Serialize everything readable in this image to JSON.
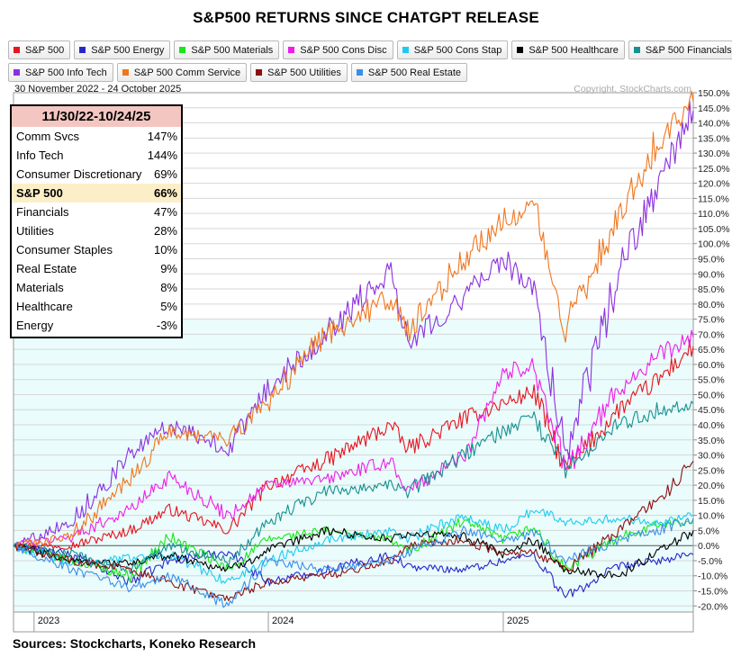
{
  "title": "S&P500 RETURNS SINCE CHATGPT RELEASE",
  "source": "Sources: Stockcharts, Koneko Research",
  "summary": {
    "header": "11/30/22-10/24/25",
    "rows": [
      {
        "label": "Comm Svcs",
        "value": "147%"
      },
      {
        "label": "Info Tech",
        "value": "144%"
      },
      {
        "label": "Consumer Discretionary",
        "value": "69%"
      },
      {
        "label": "S&P 500",
        "value": "66%"
      },
      {
        "label": "Financials",
        "value": "47%"
      },
      {
        "label": "Utilities",
        "value": "28%"
      },
      {
        "label": "Consumer Staples",
        "value": "10%"
      },
      {
        "label": "Real Estate",
        "value": "9%"
      },
      {
        "label": "Materials",
        "value": "8%"
      },
      {
        "label": "Healthcare",
        "value": "5%"
      },
      {
        "label": "Energy",
        "value": "-3%"
      }
    ]
  },
  "chart_data": {
    "type": "line",
    "title": "S&P500 RETURNS SINCE CHATGPT RELEASE",
    "date_range": "30 November 2022 - 24 October 2025",
    "copyright": "Copyright, StockCharts.com",
    "xlabel": "",
    "ylabel": "",
    "ylim": [
      -22,
      150
    ],
    "y_ticks": [
      -20,
      -15,
      -10,
      -5,
      0,
      5,
      10,
      15,
      20,
      25,
      30,
      35,
      40,
      45,
      50,
      55,
      60,
      65,
      70,
      75,
      80,
      85,
      90,
      95,
      100,
      105,
      110,
      115,
      120,
      125,
      130,
      135,
      140,
      145,
      150
    ],
    "y_tick_suffix": ".0%",
    "x_range": [
      "2022-11-30",
      "2025-10-24"
    ],
    "x_labels": [
      {
        "label": "2023",
        "date": "2023-01-01"
      },
      {
        "label": "2024",
        "date": "2024-01-01"
      },
      {
        "label": "2025",
        "date": "2025-01-01"
      }
    ],
    "x": [
      "2022-11-30",
      "2023-02-28",
      "2023-05-31",
      "2023-07-31",
      "2023-10-31",
      "2023-12-31",
      "2024-03-31",
      "2024-07-10",
      "2024-08-05",
      "2024-10-31",
      "2024-12-31",
      "2025-02-18",
      "2025-04-08",
      "2025-06-30",
      "2025-08-31",
      "2025-10-24"
    ],
    "series": [
      {
        "name": "S&P 500",
        "color": "#e8141e",
        "values": [
          0,
          0,
          5,
          12,
          5,
          20,
          28,
          40,
          32,
          42,
          47,
          51,
          25,
          45,
          55,
          66
        ]
      },
      {
        "name": "S&P 500 Energy",
        "color": "#2727c8",
        "values": [
          0,
          -3,
          -12,
          -5,
          -2,
          -12,
          -8,
          -3,
          -7,
          -8,
          -5,
          -3,
          -17,
          -7,
          -5,
          -3
        ]
      },
      {
        "name": "S&P 500 Materials",
        "color": "#17e617",
        "values": [
          0,
          -5,
          -10,
          3,
          -8,
          2,
          5,
          2,
          -2,
          8,
          2,
          6,
          -8,
          3,
          7,
          8
        ]
      },
      {
        "name": "S&P 500 Cons Disc",
        "color": "#f01de8",
        "values": [
          0,
          3,
          12,
          23,
          10,
          20,
          22,
          28,
          18,
          30,
          57,
          60,
          25,
          52,
          63,
          69
        ]
      },
      {
        "name": "S&P 500 Cons Stap",
        "color": "#1ecbf0",
        "values": [
          0,
          -6,
          -4,
          -3,
          -12,
          -5,
          2,
          5,
          2,
          10,
          5,
          12,
          8,
          9,
          8,
          10
        ]
      },
      {
        "name": "S&P 500 Healthcare",
        "color": "#000000",
        "values": [
          0,
          -5,
          -6,
          -3,
          -8,
          -2,
          5,
          2,
          4,
          3,
          -3,
          2,
          -8,
          -10,
          -2,
          5
        ]
      },
      {
        "name": "S&P 500 Financials",
        "color": "#179090",
        "values": [
          0,
          -3,
          -8,
          0,
          -5,
          8,
          18,
          20,
          18,
          30,
          38,
          42,
          25,
          40,
          45,
          47
        ]
      },
      {
        "name": "S&P 500 Info Tech",
        "color": "#8c2fe0",
        "values": [
          0,
          8,
          30,
          40,
          32,
          52,
          70,
          92,
          68,
          82,
          95,
          85,
          30,
          90,
          120,
          144
        ]
      },
      {
        "name": "S&P 500 Comm Service",
        "color": "#f0761e",
        "values": [
          0,
          3,
          22,
          38,
          35,
          48,
          70,
          82,
          70,
          95,
          108,
          112,
          72,
          110,
          135,
          147
        ]
      },
      {
        "name": "S&P 500 Utilities",
        "color": "#8b1010",
        "values": [
          0,
          -5,
          -8,
          -12,
          -18,
          -12,
          -10,
          -5,
          0,
          2,
          -3,
          -2,
          -8,
          5,
          15,
          28
        ]
      },
      {
        "name": "S&P 500 Real Estate",
        "color": "#3a8ee8",
        "values": [
          0,
          -8,
          -14,
          -10,
          -20,
          -5,
          -8,
          -5,
          -2,
          5,
          2,
          4,
          -5,
          2,
          5,
          9
        ]
      }
    ]
  }
}
